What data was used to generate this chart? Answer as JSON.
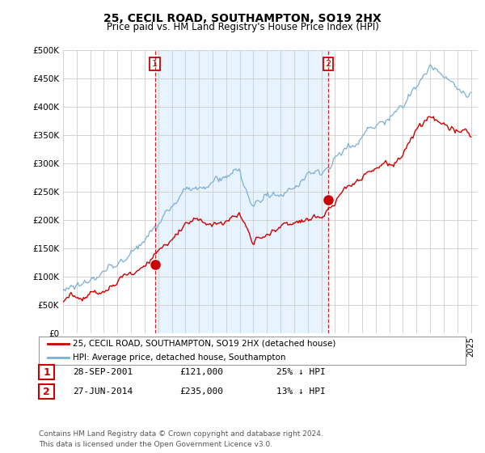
{
  "title": "25, CECIL ROAD, SOUTHAMPTON, SO19 2HX",
  "subtitle": "Price paid vs. HM Land Registry's House Price Index (HPI)",
  "ylim": [
    0,
    500000
  ],
  "yticks": [
    0,
    50000,
    100000,
    150000,
    200000,
    250000,
    300000,
    350000,
    400000,
    450000,
    500000
  ],
  "ytick_labels": [
    "£0",
    "£50K",
    "£100K",
    "£150K",
    "£200K",
    "£250K",
    "£300K",
    "£350K",
    "£400K",
    "£450K",
    "£500K"
  ],
  "price_paid_color": "#cc0000",
  "hpi_color": "#7bafd4",
  "hpi_fill_color": "#ddeeff",
  "marker1_x": 2001.75,
  "marker1_y": 121000,
  "marker2_x": 2014.5,
  "marker2_y": 235000,
  "xlim_start": 1995,
  "xlim_end": 2025.5,
  "legend_label1": "25, CECIL ROAD, SOUTHAMPTON, SO19 2HX (detached house)",
  "legend_label2": "HPI: Average price, detached house, Southampton",
  "table_row1": [
    "1",
    "28-SEP-2001",
    "£121,000",
    "25% ↓ HPI"
  ],
  "table_row2": [
    "2",
    "27-JUN-2014",
    "£235,000",
    "13% ↓ HPI"
  ],
  "footnote": "Contains HM Land Registry data © Crown copyright and database right 2024.\nThis data is licensed under the Open Government Licence v3.0.",
  "bg_color": "#ffffff",
  "grid_color": "#cccccc"
}
